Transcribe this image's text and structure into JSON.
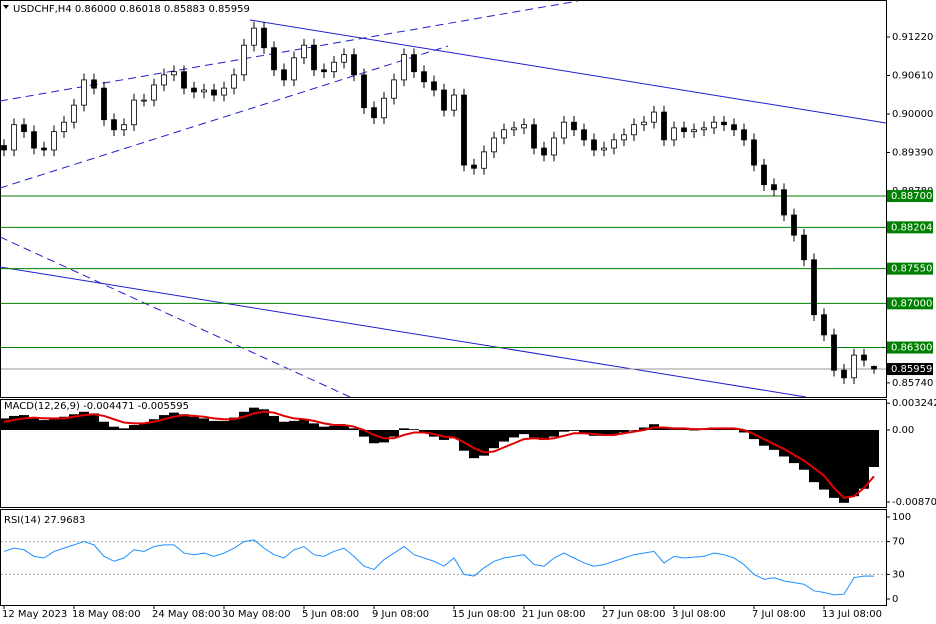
{
  "chart_data": [
    {
      "type": "candlestick",
      "title": "USDCHF,H4  0.86000 0.86018 0.85883 0.85959",
      "categories": [
        "12 May 2023",
        null,
        null,
        null,
        null,
        null,
        null,
        "18 May 08:00",
        null,
        null,
        null,
        null,
        null,
        null,
        null,
        "24 May 08:00",
        null,
        null,
        null,
        null,
        null,
        null,
        "30 May 08:00",
        null,
        null,
        null,
        null,
        null,
        null,
        null,
        "5 Jun 08:00",
        null,
        null,
        null,
        null,
        null,
        null,
        "9 Jun 08:00",
        null,
        null,
        null,
        null,
        null,
        null,
        null,
        "15 Jun 08:00",
        null,
        null,
        null,
        null,
        null,
        null,
        "21 Jun 08:00",
        null,
        null,
        null,
        null,
        null,
        null,
        null,
        "27 Jun 08:00",
        null,
        null,
        null,
        null,
        null,
        null,
        "3 Jul 08:00",
        null,
        null,
        null,
        null,
        null,
        null,
        null,
        "7 Jul 08:00",
        null,
        null,
        null,
        null,
        null,
        null,
        "13 Jul 08:00",
        null,
        null,
        null,
        null,
        null
      ],
      "open": [
        0.895,
        0.8943,
        0.8983,
        0.8972,
        0.8946,
        0.8943,
        0.8972,
        0.8987,
        0.9014,
        0.9054,
        0.9041,
        0.8991,
        0.8975,
        0.8983,
        0.9022,
        0.9022,
        0.9046,
        0.9062,
        0.9067,
        0.9041,
        0.9035,
        0.9038,
        0.903,
        0.9041,
        0.9062,
        0.9109,
        0.9136,
        0.9105,
        0.907,
        0.9054,
        0.9089,
        0.9109,
        0.907,
        0.9067,
        0.9082,
        0.9094,
        0.9062,
        0.901,
        0.8994,
        0.9025,
        0.9054,
        0.9094,
        0.9067,
        0.9051,
        0.9038,
        0.9006,
        0.903,
        0.8919,
        0.8914,
        0.894,
        0.8962,
        0.8975,
        0.8978,
        0.8983,
        0.8946,
        0.8935,
        0.8962,
        0.8987,
        0.8975,
        0.8959,
        0.8943,
        0.8946,
        0.8959,
        0.8967,
        0.8983,
        0.8987,
        0.9003,
        0.8959,
        0.8978,
        0.8972,
        0.8975,
        0.8978,
        0.8987,
        0.8983,
        0.8975,
        0.8959,
        0.8919,
        0.8888,
        0.888,
        0.884,
        0.8808,
        0.8769,
        0.8682,
        0.865,
        0.8594,
        0.8582,
        0.8618,
        0.86
      ],
      "high": [
        0.896,
        0.8993,
        0.8993,
        0.8982,
        0.8956,
        0.8982,
        0.8997,
        0.9024,
        0.9064,
        0.9064,
        0.9051,
        0.9001,
        0.8993,
        0.9032,
        0.9032,
        0.9056,
        0.9072,
        0.9077,
        0.9077,
        0.9051,
        0.9048,
        0.9048,
        0.9051,
        0.9072,
        0.9119,
        0.9146,
        0.9146,
        0.9115,
        0.908,
        0.9099,
        0.9119,
        0.9119,
        0.908,
        0.9092,
        0.9104,
        0.9104,
        0.9072,
        0.902,
        0.9035,
        0.9064,
        0.9104,
        0.9104,
        0.9077,
        0.9061,
        0.9048,
        0.904,
        0.904,
        0.8929,
        0.895,
        0.8972,
        0.8985,
        0.8988,
        0.8993,
        0.8993,
        0.8956,
        0.8972,
        0.8997,
        0.8997,
        0.8985,
        0.8969,
        0.8956,
        0.8969,
        0.8977,
        0.8993,
        0.8997,
        0.9013,
        0.9013,
        0.8988,
        0.8988,
        0.8985,
        0.8988,
        0.8997,
        0.8997,
        0.8993,
        0.8985,
        0.8969,
        0.8929,
        0.8898,
        0.889,
        0.885,
        0.8818,
        0.8779,
        0.8692,
        0.866,
        0.8604,
        0.8628,
        0.8628,
        0.86018
      ],
      "low": [
        0.8933,
        0.8933,
        0.8962,
        0.8936,
        0.8933,
        0.8933,
        0.8962,
        0.8977,
        0.9004,
        0.9031,
        0.8981,
        0.8965,
        0.8965,
        0.8973,
        0.9012,
        0.9012,
        0.9036,
        0.9052,
        0.9031,
        0.9025,
        0.9025,
        0.902,
        0.902,
        0.9031,
        0.9052,
        0.9099,
        0.9095,
        0.906,
        0.9044,
        0.9044,
        0.9079,
        0.906,
        0.9057,
        0.9057,
        0.9072,
        0.9052,
        0.9,
        0.8984,
        0.8984,
        0.9015,
        0.9044,
        0.9057,
        0.9041,
        0.9028,
        0.8996,
        0.8996,
        0.8909,
        0.8904,
        0.8904,
        0.893,
        0.8952,
        0.8965,
        0.8968,
        0.8936,
        0.8925,
        0.8925,
        0.8952,
        0.8965,
        0.8949,
        0.8933,
        0.8933,
        0.8936,
        0.8949,
        0.8957,
        0.8973,
        0.8977,
        0.8949,
        0.8949,
        0.8962,
        0.8962,
        0.8965,
        0.8968,
        0.8973,
        0.8965,
        0.8949,
        0.8909,
        0.8878,
        0.887,
        0.883,
        0.8798,
        0.8759,
        0.8672,
        0.864,
        0.8584,
        0.8572,
        0.8572,
        0.86,
        0.85883
      ],
      "close": [
        0.8943,
        0.8983,
        0.8972,
        0.8946,
        0.8943,
        0.8972,
        0.8987,
        0.9014,
        0.9054,
        0.9041,
        0.8991,
        0.8975,
        0.8983,
        0.9022,
        0.9022,
        0.9046,
        0.9062,
        0.9067,
        0.9041,
        0.9035,
        0.9038,
        0.903,
        0.9041,
        0.9062,
        0.9109,
        0.9136,
        0.9105,
        0.907,
        0.9054,
        0.9089,
        0.9109,
        0.907,
        0.9067,
        0.9082,
        0.9094,
        0.9062,
        0.901,
        0.8994,
        0.9025,
        0.9054,
        0.9094,
        0.9067,
        0.9051,
        0.9038,
        0.9006,
        0.903,
        0.8919,
        0.8914,
        0.894,
        0.8962,
        0.8975,
        0.8978,
        0.8983,
        0.8946,
        0.8935,
        0.8962,
        0.8987,
        0.8975,
        0.8959,
        0.8943,
        0.8946,
        0.8959,
        0.8967,
        0.8983,
        0.8987,
        0.9003,
        0.8959,
        0.8978,
        0.8972,
        0.8975,
        0.8978,
        0.8987,
        0.8983,
        0.8975,
        0.8959,
        0.8919,
        0.8888,
        0.888,
        0.884,
        0.8808,
        0.8769,
        0.8682,
        0.865,
        0.8594,
        0.8582,
        0.8618,
        0.861,
        0.85959
      ],
      "up_color": "#ffffff",
      "down_color": "#000000",
      "ylim": [
        0.85516,
        0.91806
      ],
      "yticks": [
        {
          "value": 0.9122,
          "label": "0.91220"
        },
        {
          "value": 0.9061,
          "label": "0.90610"
        },
        {
          "value": 0.9,
          "label": "0.90000"
        },
        {
          "value": 0.8939,
          "label": "0.89390"
        },
        {
          "value": 0.8878,
          "label": "0.88780"
        },
        {
          "value": 0.8574,
          "label": "0.85740"
        }
      ],
      "levels": [
        {
          "value": 0.887,
          "label": "0.88700"
        },
        {
          "value": 0.88204,
          "label": "0.88204"
        },
        {
          "value": 0.8755,
          "label": "0.87550"
        },
        {
          "value": 0.87,
          "label": "0.87000"
        },
        {
          "value": 0.863,
          "label": "0.86300"
        }
      ],
      "level_color": "#008000",
      "last_price": {
        "value": 0.85959,
        "label": "0.85959"
      }
    },
    {
      "type": "macd",
      "title": "MACD(12,26,9) -0.004471 -0.005595",
      "histogram": [
        0.0014,
        0.0017,
        0.0018,
        0.0015,
        0.0012,
        0.0013,
        0.0016,
        0.0019,
        0.0022,
        0.002,
        0.001,
        0.0004,
        0.0002,
        0.0006,
        0.0009,
        0.0013,
        0.0018,
        0.0021,
        0.0019,
        0.0016,
        0.0014,
        0.0011,
        0.0011,
        0.0015,
        0.0022,
        0.0027,
        0.0025,
        0.0017,
        0.001,
        0.0011,
        0.0013,
        0.0008,
        0.0004,
        0.0005,
        0.0006,
        0.0002,
        -0.0008,
        -0.0016,
        -0.0015,
        -0.0008,
        0.0002,
        0.0001,
        -0.0003,
        -0.0008,
        -0.0012,
        -0.001,
        -0.0025,
        -0.0034,
        -0.0031,
        -0.0022,
        -0.0014,
        -0.0009,
        -0.0005,
        -0.0009,
        -0.0012,
        -0.0008,
        -0.0002,
        -0.0001,
        -0.0004,
        -0.0007,
        -0.0007,
        -0.0005,
        -0.0003,
        0.0,
        0.0003,
        0.0007,
        0.0002,
        0.0001,
        0.0001,
        0.0,
        0.0001,
        0.0003,
        0.0003,
        0.0001,
        -0.0003,
        -0.0011,
        -0.0019,
        -0.0024,
        -0.0032,
        -0.004,
        -0.0048,
        -0.0063,
        -0.0072,
        -0.0082,
        -0.0088,
        -0.008,
        -0.0071,
        -0.004471
      ],
      "signal": [
        0.001,
        0.0012,
        0.0014,
        0.0015,
        0.0014,
        0.0014,
        0.0014,
        0.0016,
        0.0018,
        0.0019,
        0.0017,
        0.0013,
        0.0009,
        0.0008,
        0.0008,
        0.001,
        0.0013,
        0.0016,
        0.0018,
        0.0017,
        0.0016,
        0.0014,
        0.0013,
        0.0013,
        0.0016,
        0.002,
        0.0022,
        0.0021,
        0.0017,
        0.0014,
        0.0013,
        0.0011,
        0.0008,
        0.0006,
        0.0006,
        0.0004,
        0.0,
        -0.0006,
        -0.001,
        -0.001,
        -0.0006,
        -0.0003,
        -0.0003,
        -0.0005,
        -0.0008,
        -0.0009,
        -0.0015,
        -0.0022,
        -0.0027,
        -0.0026,
        -0.0021,
        -0.0016,
        -0.0011,
        -0.001,
        -0.0011,
        -0.001,
        -0.0007,
        -0.0004,
        -0.0004,
        -0.0005,
        -0.0006,
        -0.0006,
        -0.0004,
        -0.0002,
        0.0,
        0.0003,
        0.0003,
        0.0002,
        0.0002,
        0.0001,
        0.0001,
        0.0002,
        0.0002,
        0.0002,
        0.0,
        -0.0005,
        -0.0011,
        -0.0017,
        -0.0023,
        -0.003,
        -0.0037,
        -0.0046,
        -0.0055,
        -0.007,
        -0.0082,
        -0.008,
        -0.007,
        -0.005595
      ],
      "histogram_color": "#000000",
      "signal_color": "#e00000",
      "ylim": [
        -0.009426,
        0.003867
      ],
      "yticks": [
        0.003242,
        {
          "value": 0,
          "label": "0.00"
        },
        -0.008701
      ]
    },
    {
      "type": "rsi",
      "title": "RSI(14) 27.9683",
      "values": [
        58,
        62,
        60,
        52,
        50,
        58,
        62,
        66,
        70,
        66,
        52,
        46,
        50,
        60,
        58,
        64,
        66,
        66,
        56,
        54,
        56,
        52,
        56,
        62,
        70,
        72,
        62,
        54,
        50,
        60,
        64,
        54,
        52,
        58,
        62,
        52,
        40,
        36,
        48,
        56,
        64,
        54,
        50,
        46,
        40,
        50,
        30,
        28,
        38,
        46,
        50,
        52,
        54,
        42,
        40,
        50,
        56,
        50,
        44,
        40,
        42,
        46,
        50,
        54,
        56,
        58,
        44,
        52,
        50,
        51,
        52,
        56,
        54,
        50,
        42,
        30,
        24,
        26,
        22,
        20,
        18,
        10,
        8,
        5,
        6,
        26,
        28,
        27.9683
      ],
      "color": "#1e90ff",
      "ylim": [
        -7.3,
        108.5
      ],
      "yticks": [
        100,
        70,
        30,
        0
      ],
      "levels": [
        70,
        30
      ]
    }
  ]
}
